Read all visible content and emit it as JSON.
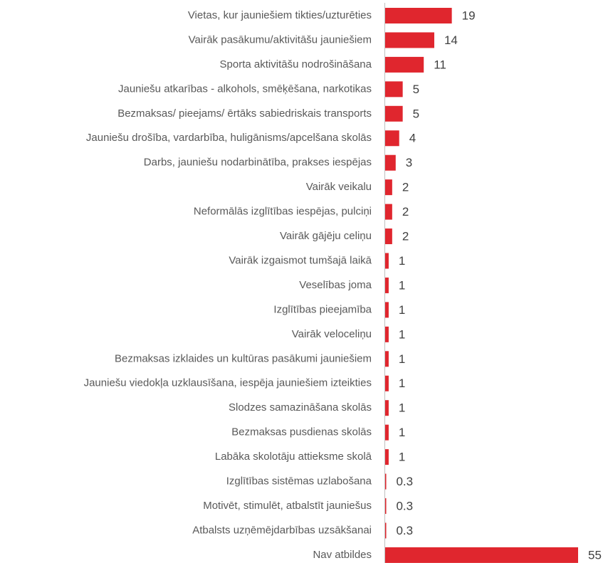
{
  "chart_data": {
    "type": "hbar",
    "color": "#e0262e",
    "categories": [
      "Vietas, kur jauniešiem tikties/uzturēties",
      "Vairāk pasākumu/aktivitāšu jauniešiem",
      "Sporta aktivitāšu nodrošināšana",
      "Jauniešu atkarības - alkohols, smēķēšana, narkotikas",
      "Bezmaksas/ pieejams/ ērtāks sabiedriskais transports",
      "Jauniešu drošība, vardarbība, huligānisms/apcelšana skolās",
      "Darbs, jauniešu nodarbinātība, prakses iespējas",
      "Vairāk veikalu",
      "Neformālās izglītības iespējas, pulciņi",
      "Vairāk gājēju celiņu",
      "Vairāk izgaismot tumšajā laikā",
      "Veselības joma",
      "Izglītības pieejamība",
      "Vairāk veloceliņu",
      "Bezmaksas izklaides un kultūras pasākumi jauniešiem",
      "Jauniešu viedokļa uzklausīšana, iespēja jauniešiem izteikties",
      "Slodzes samazināšana skolās",
      "Bezmaksas pusdienas skolās",
      "Labāka skolotāju attieksme skolā",
      "Izglītības sistēmas uzlabošana",
      "Motivēt, stimulēt, atbalstīt jauniešus",
      "Atbalsts uzņēmējdarbības uzsākšanai",
      "Nav atbildes"
    ],
    "values": [
      19,
      14,
      11,
      5,
      5,
      4,
      3,
      2,
      2,
      2,
      1,
      1,
      1,
      1,
      1,
      1,
      1,
      1,
      1,
      0.3,
      0.3,
      0.3,
      55
    ],
    "xlim": [
      0,
      55
    ]
  }
}
